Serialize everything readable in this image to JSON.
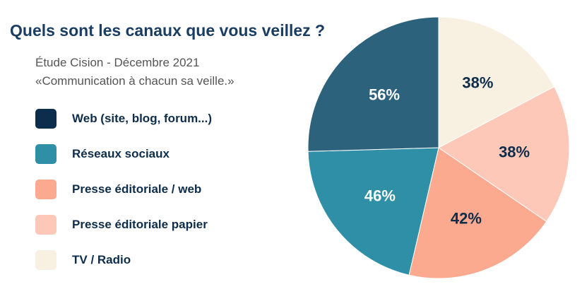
{
  "chart_data": {
    "type": "pie",
    "title": "Quels sont les canaux que vous veillez ?",
    "subtitle_lines": [
      "Étude Cision - Décembre 2021",
      "«Communication à chacun sa veille.»"
    ],
    "categories": [
      "Web (site, blog, forum...)",
      "Réseaux sociaux",
      "Presse éditoriale / web",
      "Presse éditoriale papier",
      "TV / Radio"
    ],
    "values": [
      56,
      46,
      42,
      38,
      38
    ],
    "value_labels": [
      "56%",
      "46%",
      "42%",
      "38%",
      "38%"
    ],
    "colors": [
      "#0c2d4b",
      "#2e8fa6",
      "#fbaa90",
      "#fec8b8",
      "#f8f1e2"
    ],
    "slice_colors": [
      "#2c627c",
      "#2e8fa6",
      "#fbaa90",
      "#fec8b8",
      "#f8f1e2"
    ],
    "label_colors": [
      "#ffffff",
      "#ffffff",
      "#0d2d4a",
      "#0d2d4a",
      "#0d2d4a"
    ],
    "legend_position": "left"
  }
}
